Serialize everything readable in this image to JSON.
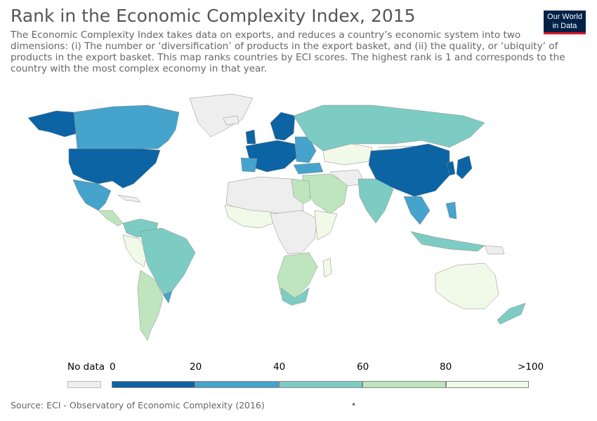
{
  "header": {
    "title": "Rank in the Economic Complexity Index, 2015",
    "subtitle": "The Economic Complexity Index takes data on exports, and reduces a country’s economic system into two dimensions: (i) The number or ‘diversification’ of products in the export basket, and (ii) the quality, or ‘ubiquity’ of products in the export basket. This map ranks countries by ECI scores. The highest rank is 1 and corresponds to the country with the most complex economy in that year."
  },
  "logo": {
    "line1": "Our World",
    "line2": "in Data"
  },
  "legend": {
    "no_data_label": "No data",
    "no_data_color": "#eeeeee",
    "ticks": [
      "0",
      "20",
      "40",
      "60",
      "80",
      ">100"
    ],
    "bins": [
      {
        "color": "#0c64a4"
      },
      {
        "color": "#45a3cc"
      },
      {
        "color": "#7dccc4"
      },
      {
        "color": "#bfe5bf"
      },
      {
        "color": "#f1f9e8"
      }
    ]
  },
  "source": "Source: ECI - Observatory of Economic Complexity (2016)",
  "footer_dot": "•"
}
